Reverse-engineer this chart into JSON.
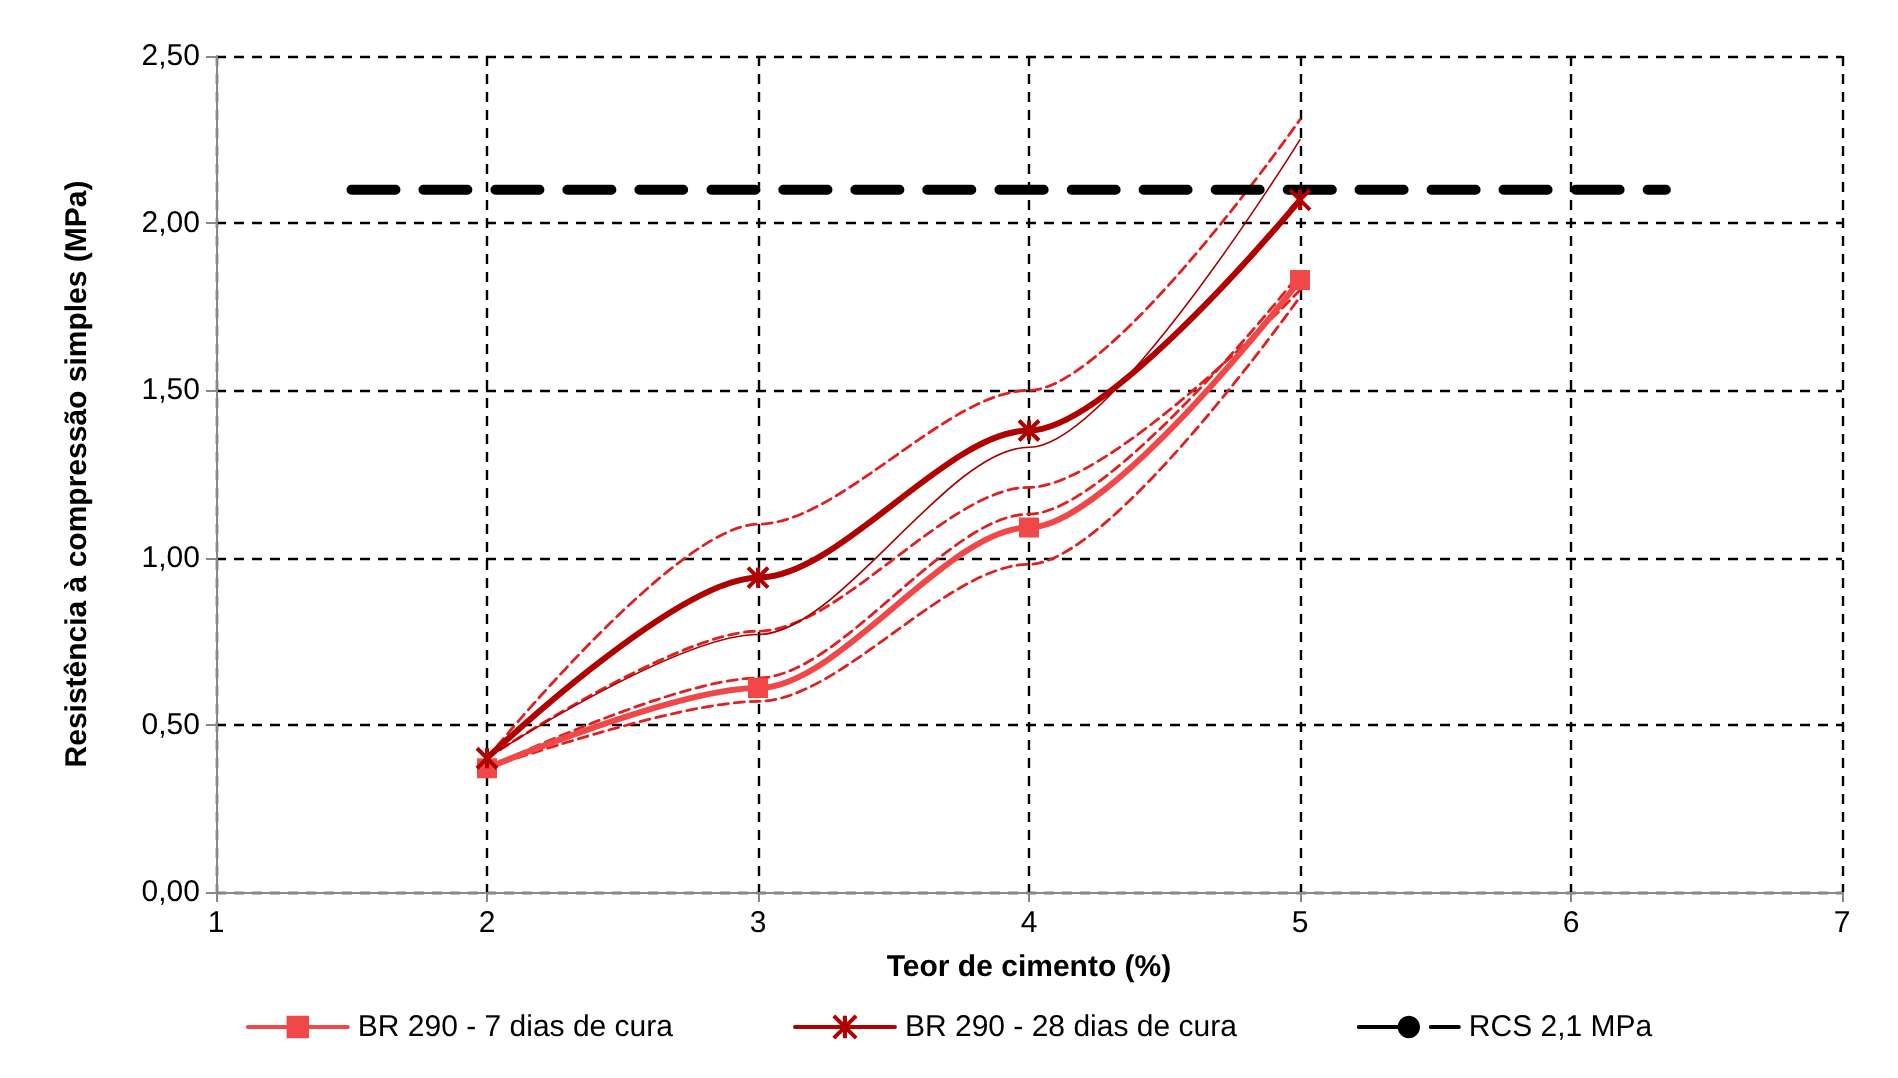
{
  "chart_data": {
    "type": "line",
    "xlabel": "Teor de cimento (%)",
    "ylabel": "Resistência à compressão simples (MPa)",
    "x": [
      2,
      3,
      4,
      5
    ],
    "xlim": [
      1,
      7
    ],
    "xticks": [
      1,
      2,
      3,
      4,
      5,
      6,
      7
    ],
    "ylim": [
      0,
      2.5
    ],
    "yticks": [
      {
        "value": 0,
        "label": "0,00"
      },
      {
        "value": 0.5,
        "label": "0,50"
      },
      {
        "value": 1,
        "label": "1,00"
      },
      {
        "value": 1.5,
        "label": "1,50"
      },
      {
        "value": 2,
        "label": "2,00"
      },
      {
        "value": 2.5,
        "label": "2,50"
      }
    ],
    "grid": true,
    "legend": "bottom",
    "series": [
      {
        "color": "#e02020",
        "line_style": "dashed",
        "marker": "none",
        "values": [
          0.4,
          1.1,
          1.5,
          2.31
        ]
      },
      {
        "color": "#e02020",
        "line_style": "dashed",
        "marker": "none",
        "values": [
          0.4,
          0.78,
          1.21,
          1.8
        ]
      },
      {
        "color": "#e02020",
        "line_style": "dashed",
        "marker": "none",
        "values": [
          0.37,
          0.64,
          1.13,
          1.85
        ]
      },
      {
        "color": "#e02020",
        "line_style": "dashed",
        "marker": "none",
        "values": [
          0.37,
          0.57,
          0.98,
          1.78
        ]
      },
      {
        "color": "#aa0000",
        "line_style": "solid",
        "marker": "none",
        "values": [
          0.4,
          0.77,
          1.33,
          2.25
        ]
      },
      {
        "name": "BR 290 - 7 dias de cura",
        "color": "#f04848",
        "line_style": "solid",
        "marker": "square",
        "values": [
          0.37,
          0.61,
          1.09,
          1.83
        ]
      },
      {
        "name": "BR 290 - 28 dias de cura",
        "color": "#b00000",
        "line_style": "solid",
        "marker": "cross",
        "values": [
          0.4,
          0.94,
          1.38,
          2.07
        ]
      },
      {
        "name": "RCS 2,1 MPa",
        "color": "#000000",
        "line_style": "dashed",
        "marker": "none",
        "x": [
          1.5,
          6.35
        ],
        "values": [
          2.1,
          2.1
        ]
      }
    ]
  }
}
